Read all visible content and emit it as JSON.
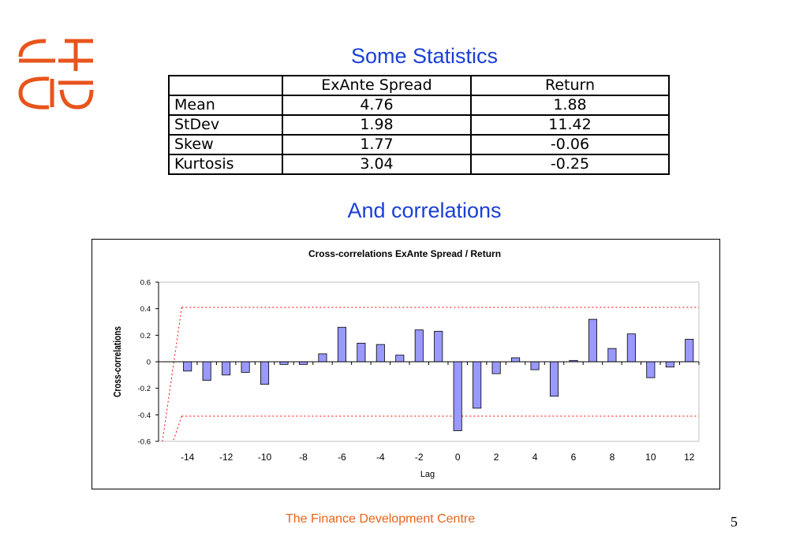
{
  "slide": {
    "title": "Some Statistics",
    "subtitle": "And correlations",
    "footer": "The Finance Development Centre",
    "page_number": "5",
    "accent_color": "#1a3fd6",
    "logo_color": "#e8541c"
  },
  "stats_table": {
    "headers": [
      "",
      "ExAnte Spread",
      "Return"
    ],
    "rows": [
      {
        "label": "Mean",
        "spread": "4.76",
        "ret": "1.88"
      },
      {
        "label": "StDev",
        "spread": "1.98",
        "ret": "11.42"
      },
      {
        "label": "Skew",
        "spread": "1.77",
        "ret": "-0.06"
      },
      {
        "label": "Kurtosis",
        "spread": "3.04",
        "ret": "-0.25"
      }
    ]
  },
  "chart_data": {
    "type": "bar",
    "title": "Cross-correlations ExAnte Spread / Return",
    "xlabel": "Lag",
    "ylabel": "Cross-correlations",
    "ylim": [
      -0.6,
      0.6
    ],
    "yticks": [
      "0.6",
      "0.4",
      "0.2",
      "0",
      "-0.2",
      "-0.4",
      "-0.6"
    ],
    "xticks": [
      "-14",
      "-12",
      "-10",
      "-8",
      "-6",
      "-4",
      "-2",
      "0",
      "2",
      "4",
      "6",
      "8",
      "10",
      "12"
    ],
    "x": [
      -14,
      -13,
      -12,
      -11,
      -10,
      -9,
      -8,
      -7,
      -6,
      -5,
      -4,
      -3,
      -2,
      -1,
      0,
      1,
      2,
      3,
      4,
      5,
      6,
      7,
      8,
      9,
      10,
      11,
      12
    ],
    "values": [
      -0.07,
      -0.14,
      -0.1,
      -0.08,
      -0.17,
      -0.02,
      -0.02,
      0.06,
      0.26,
      0.14,
      0.13,
      0.05,
      0.24,
      0.23,
      -0.52,
      -0.35,
      -0.09,
      0.03,
      -0.06,
      -0.26,
      0.01,
      0.32,
      0.1,
      0.21,
      -0.12,
      -0.04,
      0.17
    ],
    "confidence_band": 0.41,
    "bar_color": "#9999ff",
    "band_color": "#ff0000",
    "grid": false
  }
}
